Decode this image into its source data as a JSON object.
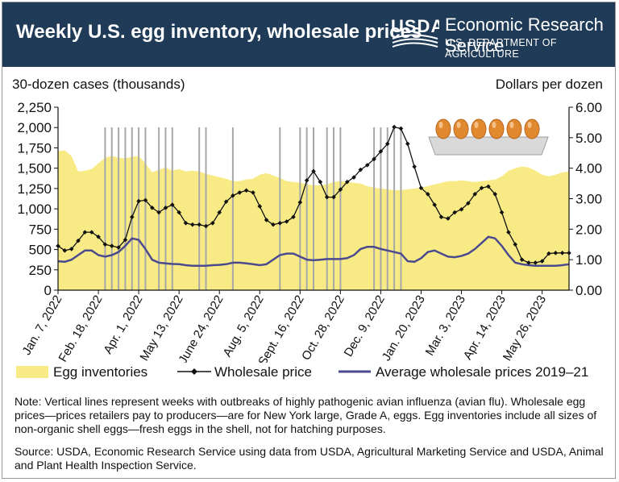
{
  "header": {
    "title": "Weekly U.S. egg inventory, wholesale prices",
    "logo_text": "USDA",
    "agency": "Economic Research Service",
    "department": "U.S. DEPARTMENT OF AGRICULTURE"
  },
  "axes": {
    "left_title": "30-dozen cases (thousands)",
    "right_title": "Dollars per dozen"
  },
  "legend": {
    "inventory": "Egg inventories",
    "wholesale": "Wholesale price",
    "average": "Average wholesale prices 2019–21"
  },
  "note": "Note: Vertical lines represent weeks with outbreaks of highly pathogenic avian influenza (avian flu). Wholesale egg prices—prices retailers pay to producers—are for New York large, Grade A, eggs. Egg inventories include all sizes of non-organic shell eggs—fresh eggs in the shell, not for hatching purposes.",
  "source": "Source: USDA, Economic Research Service using data from USDA, Agricultural Marketing Service and USDA, Animal and Plant Health Inspection Service.",
  "colors": {
    "header_bg": "#1f3b57",
    "inventory_fill": "#f8eb86",
    "wholesale_line": "#111111",
    "average_line": "#4b4a8f",
    "outbreak_line": "#a8a8a8"
  },
  "chart_data": {
    "type": "line",
    "x_ticks": [
      "Jan. 7, 2022",
      "Feb. 18, 2022",
      "Apr. 1, 2022",
      "May 13, 2022",
      "June 24, 2022",
      "Aug. 5, 2022",
      "Sept. 16, 2022",
      "Oct. 28, 2022",
      "Dec. 9, 2022",
      "Jan. 20, 2023",
      "Mar. 3, 2023",
      "Apr. 14, 2023",
      "May 26, 2023"
    ],
    "x_tick_weeks": [
      0,
      6,
      12,
      18,
      24,
      30,
      36,
      42,
      48,
      54,
      60,
      66,
      72
    ],
    "y_left": {
      "label": "30-dozen cases (thousands)",
      "min": 0,
      "max": 2250,
      "ticks": [
        "0",
        "250",
        "500",
        "750",
        "1,000",
        "1,250",
        "1,500",
        "1,750",
        "2,000",
        "2,250"
      ]
    },
    "y_right": {
      "label": "Dollars per dozen",
      "min": 0,
      "max": 6,
      "ticks": [
        "0.00",
        "1.00",
        "2.00",
        "3.00",
        "4.00",
        "5.00",
        "6.00"
      ]
    },
    "series": [
      {
        "name": "Egg inventories",
        "kind": "area",
        "axis": "left",
        "values": [
          1710,
          1720,
          1650,
          1460,
          1470,
          1490,
          1560,
          1630,
          1650,
          1630,
          1620,
          1640,
          1650,
          1560,
          1450,
          1480,
          1510,
          1470,
          1490,
          1460,
          1470,
          1460,
          1430,
          1410,
          1390,
          1370,
          1340,
          1340,
          1360,
          1370,
          1420,
          1440,
          1410,
          1380,
          1340,
          1330,
          1320,
          1300,
          1290,
          1290,
          1300,
          1330,
          1340,
          1330,
          1320,
          1310,
          1280,
          1260,
          1250,
          1240,
          1230,
          1230,
          1240,
          1250,
          1260,
          1280,
          1300,
          1320,
          1340,
          1340,
          1350,
          1340,
          1330,
          1340,
          1350,
          1360,
          1400,
          1470,
          1500,
          1520,
          1510,
          1470,
          1420,
          1400,
          1420,
          1450,
          1460
        ]
      },
      {
        "name": "Wholesale price",
        "kind": "line",
        "axis": "right",
        "values": [
          1.45,
          1.3,
          1.35,
          1.62,
          1.9,
          1.9,
          1.75,
          1.5,
          1.45,
          1.4,
          1.65,
          2.4,
          2.92,
          2.95,
          2.7,
          2.55,
          2.7,
          2.8,
          2.55,
          2.2,
          2.15,
          2.15,
          2.1,
          2.2,
          2.55,
          2.9,
          3.1,
          3.2,
          3.27,
          3.2,
          2.75,
          2.3,
          2.15,
          2.2,
          2.25,
          2.4,
          2.88,
          3.6,
          3.9,
          3.55,
          3.05,
          3.05,
          3.3,
          3.55,
          3.7,
          3.95,
          4.1,
          4.3,
          4.55,
          4.8,
          5.35,
          5.3,
          4.8,
          4.05,
          3.35,
          3.15,
          2.8,
          2.4,
          2.35,
          2.55,
          2.65,
          2.85,
          3.15,
          3.35,
          3.4,
          3.15,
          2.55,
          1.9,
          1.5,
          1.0,
          0.9,
          0.9,
          0.95,
          1.2,
          1.22,
          1.22,
          1.22
        ]
      },
      {
        "name": "Average wholesale prices 2019–21",
        "kind": "line",
        "axis": "right",
        "values": [
          0.95,
          0.93,
          1.0,
          1.15,
          1.3,
          1.3,
          1.15,
          1.1,
          1.15,
          1.25,
          1.45,
          1.7,
          1.65,
          1.35,
          1.0,
          0.9,
          0.88,
          0.86,
          0.85,
          0.82,
          0.8,
          0.8,
          0.8,
          0.82,
          0.83,
          0.85,
          0.9,
          0.9,
          0.88,
          0.85,
          0.82,
          0.85,
          1.0,
          1.15,
          1.2,
          1.2,
          1.1,
          1.0,
          0.98,
          1.0,
          1.02,
          1.02,
          1.02,
          1.05,
          1.15,
          1.35,
          1.42,
          1.42,
          1.35,
          1.3,
          1.25,
          1.2,
          0.95,
          0.93,
          1.05,
          1.25,
          1.3,
          1.2,
          1.1,
          1.08,
          1.12,
          1.2,
          1.35,
          1.55,
          1.75,
          1.7,
          1.45,
          1.15,
          0.9,
          0.85,
          0.82,
          0.8,
          0.8,
          0.8,
          0.8,
          0.82,
          0.85
        ]
      }
    ],
    "outbreak_weeks": [
      7,
      8,
      9,
      10,
      11,
      12,
      13,
      15,
      16,
      17,
      21,
      22,
      26,
      33,
      36,
      37,
      38,
      40,
      41,
      42,
      47,
      48,
      49,
      50,
      51
    ]
  }
}
